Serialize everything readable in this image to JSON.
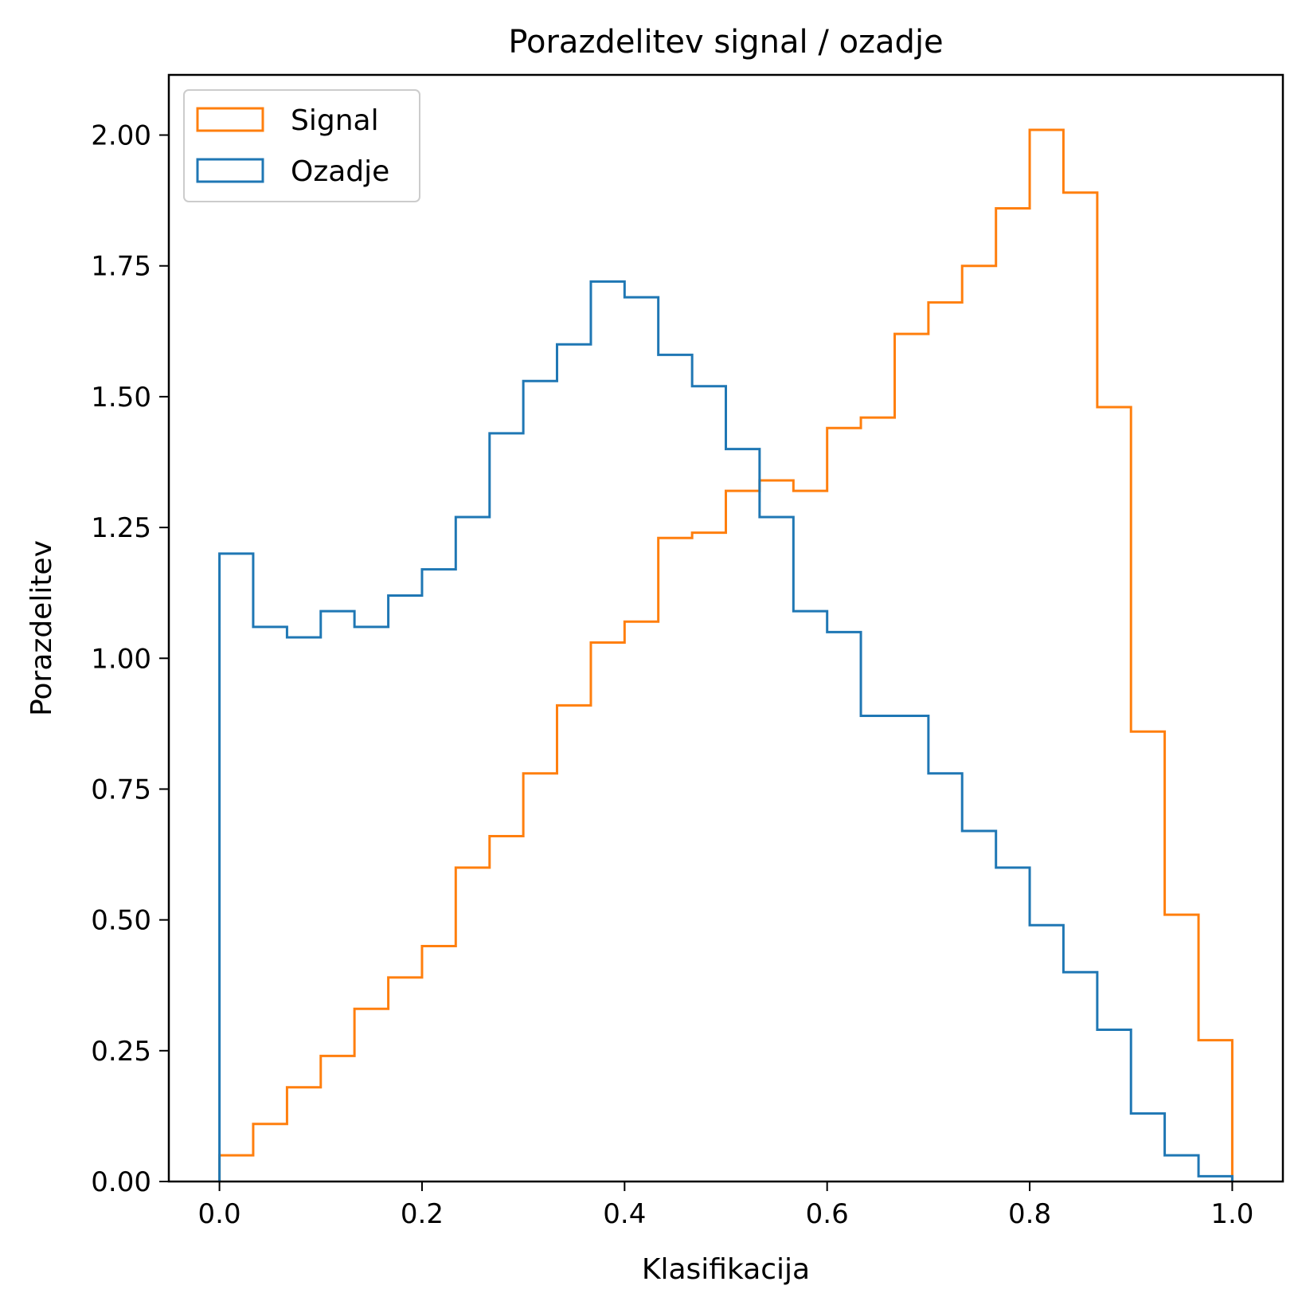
{
  "chart_data": {
    "type": "histogram-step",
    "title": "Porazdelitev signal / ozadje",
    "xlabel": "Klasifikacija",
    "ylabel": "Porazdelitev",
    "xlim": [
      -0.05,
      1.05
    ],
    "ylim": [
      0,
      2.115
    ],
    "xticks": [
      0.0,
      0.2,
      0.4,
      0.6,
      0.8,
      1.0
    ],
    "xtick_labels": [
      "0.0",
      "0.2",
      "0.4",
      "0.6",
      "0.8",
      "1.0"
    ],
    "yticks": [
      0.0,
      0.25,
      0.5,
      0.75,
      1.0,
      1.25,
      1.5,
      1.75,
      2.0
    ],
    "ytick_labels": [
      "0.00",
      "0.25",
      "0.50",
      "0.75",
      "1.00",
      "1.25",
      "1.50",
      "1.75",
      "2.00"
    ],
    "bin_edges": [
      0.0,
      0.0333,
      0.0667,
      0.1,
      0.1333,
      0.1667,
      0.2,
      0.2333,
      0.2667,
      0.3,
      0.3333,
      0.3667,
      0.4,
      0.4333,
      0.4667,
      0.5,
      0.5333,
      0.5667,
      0.6,
      0.6333,
      0.6667,
      0.7,
      0.7333,
      0.7667,
      0.8,
      0.8333,
      0.8667,
      0.9,
      0.9333,
      0.9667,
      1.0
    ],
    "legend_position": "top-left",
    "grid": false,
    "series": [
      {
        "name": "Signal",
        "color": "#ff7f0e",
        "values": [
          0.05,
          0.11,
          0.18,
          0.24,
          0.33,
          0.39,
          0.45,
          0.6,
          0.66,
          0.78,
          0.91,
          1.03,
          1.07,
          1.23,
          1.24,
          1.32,
          1.34,
          1.32,
          1.44,
          1.46,
          1.62,
          1.68,
          1.75,
          1.86,
          2.01,
          1.89,
          1.48,
          0.86,
          0.51,
          0.27
        ]
      },
      {
        "name": "Ozadje",
        "color": "#1f77b4",
        "values": [
          1.2,
          1.06,
          1.04,
          1.09,
          1.06,
          1.12,
          1.17,
          1.27,
          1.43,
          1.53,
          1.6,
          1.72,
          1.69,
          1.58,
          1.52,
          1.4,
          1.27,
          1.09,
          1.05,
          0.89,
          0.89,
          0.78,
          0.67,
          0.6,
          0.49,
          0.4,
          0.29,
          0.13,
          0.05,
          0.01
        ]
      }
    ]
  }
}
